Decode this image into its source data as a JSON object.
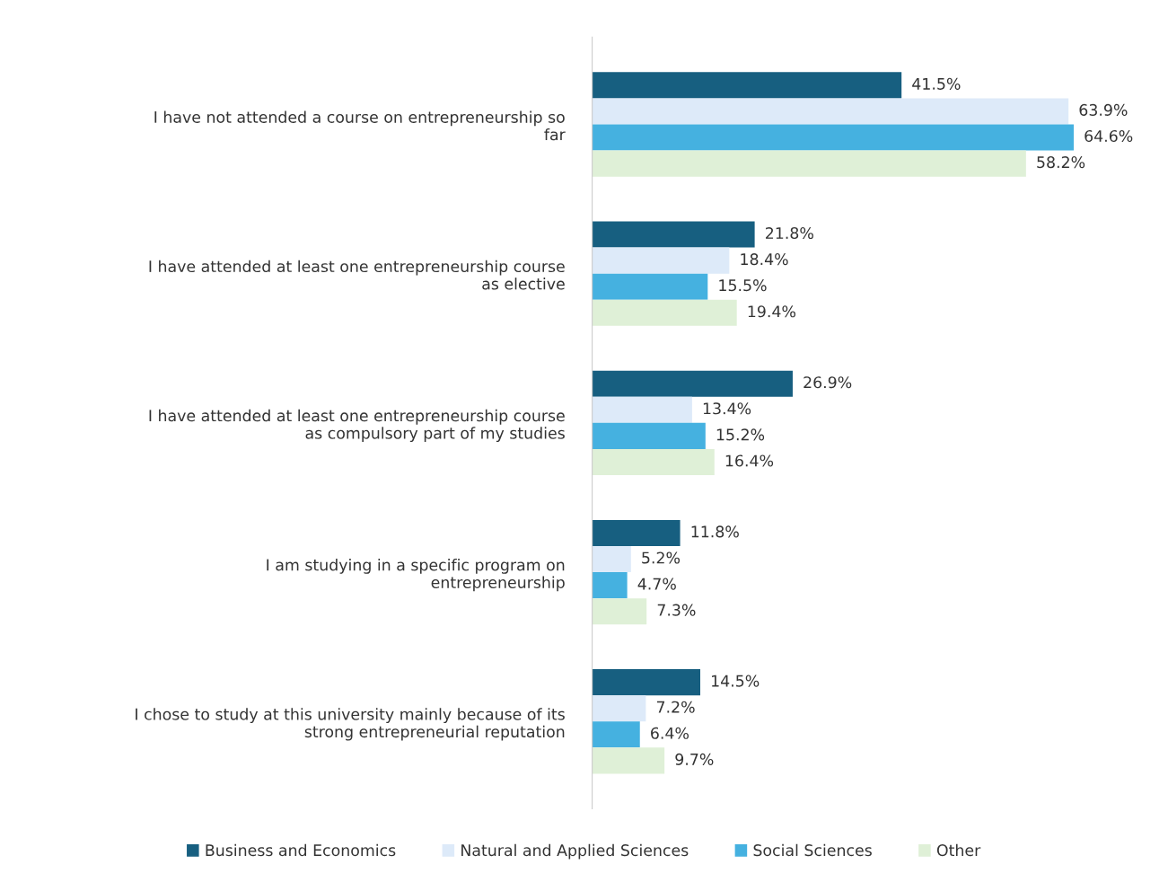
{
  "chart_data": {
    "type": "bar",
    "orientation": "horizontal",
    "categories": [
      "I have not attended a course on entrepreneurship so\nfar",
      "I have attended at least one entrepreneurship course\nas elective",
      "I have attended at least one entrepreneurship course\nas compulsory part of my studies",
      "I am studying in a specific program on\nentrepreneurship",
      "I chose to study at this university mainly because of its\nstrong entrepreneurial reputation"
    ],
    "series": [
      {
        "name": "Business and Economics",
        "color": "#175f80",
        "values": [
          41.5,
          21.8,
          26.9,
          11.8,
          14.5
        ],
        "value_labels": [
          "41.5%",
          "21.8%",
          "26.9%",
          "11.8%",
          "14.5%"
        ]
      },
      {
        "name": "Natural and Applied Sciences",
        "color": "#ddeaf9",
        "values": [
          63.9,
          18.4,
          13.4,
          5.2,
          7.2
        ],
        "value_labels": [
          "63.9%",
          "18.4%",
          "13.4%",
          "5.2%",
          "7.2%"
        ]
      },
      {
        "name": "Social Sciences",
        "color": "#45b1e0",
        "values": [
          64.6,
          15.5,
          15.2,
          4.7,
          6.4
        ],
        "value_labels": [
          "64.6%",
          "15.5%",
          "15.2%",
          "4.7%",
          "6.4%"
        ]
      },
      {
        "name": "Other",
        "color": "#dff0d7",
        "values": [
          58.2,
          19.4,
          16.4,
          7.3,
          9.7
        ],
        "value_labels": [
          "58.2%",
          "19.4%",
          "16.4%",
          "7.3%",
          "9.7%"
        ]
      }
    ],
    "legend": "bottom",
    "grid": false,
    "tick_labels": "y"
  }
}
